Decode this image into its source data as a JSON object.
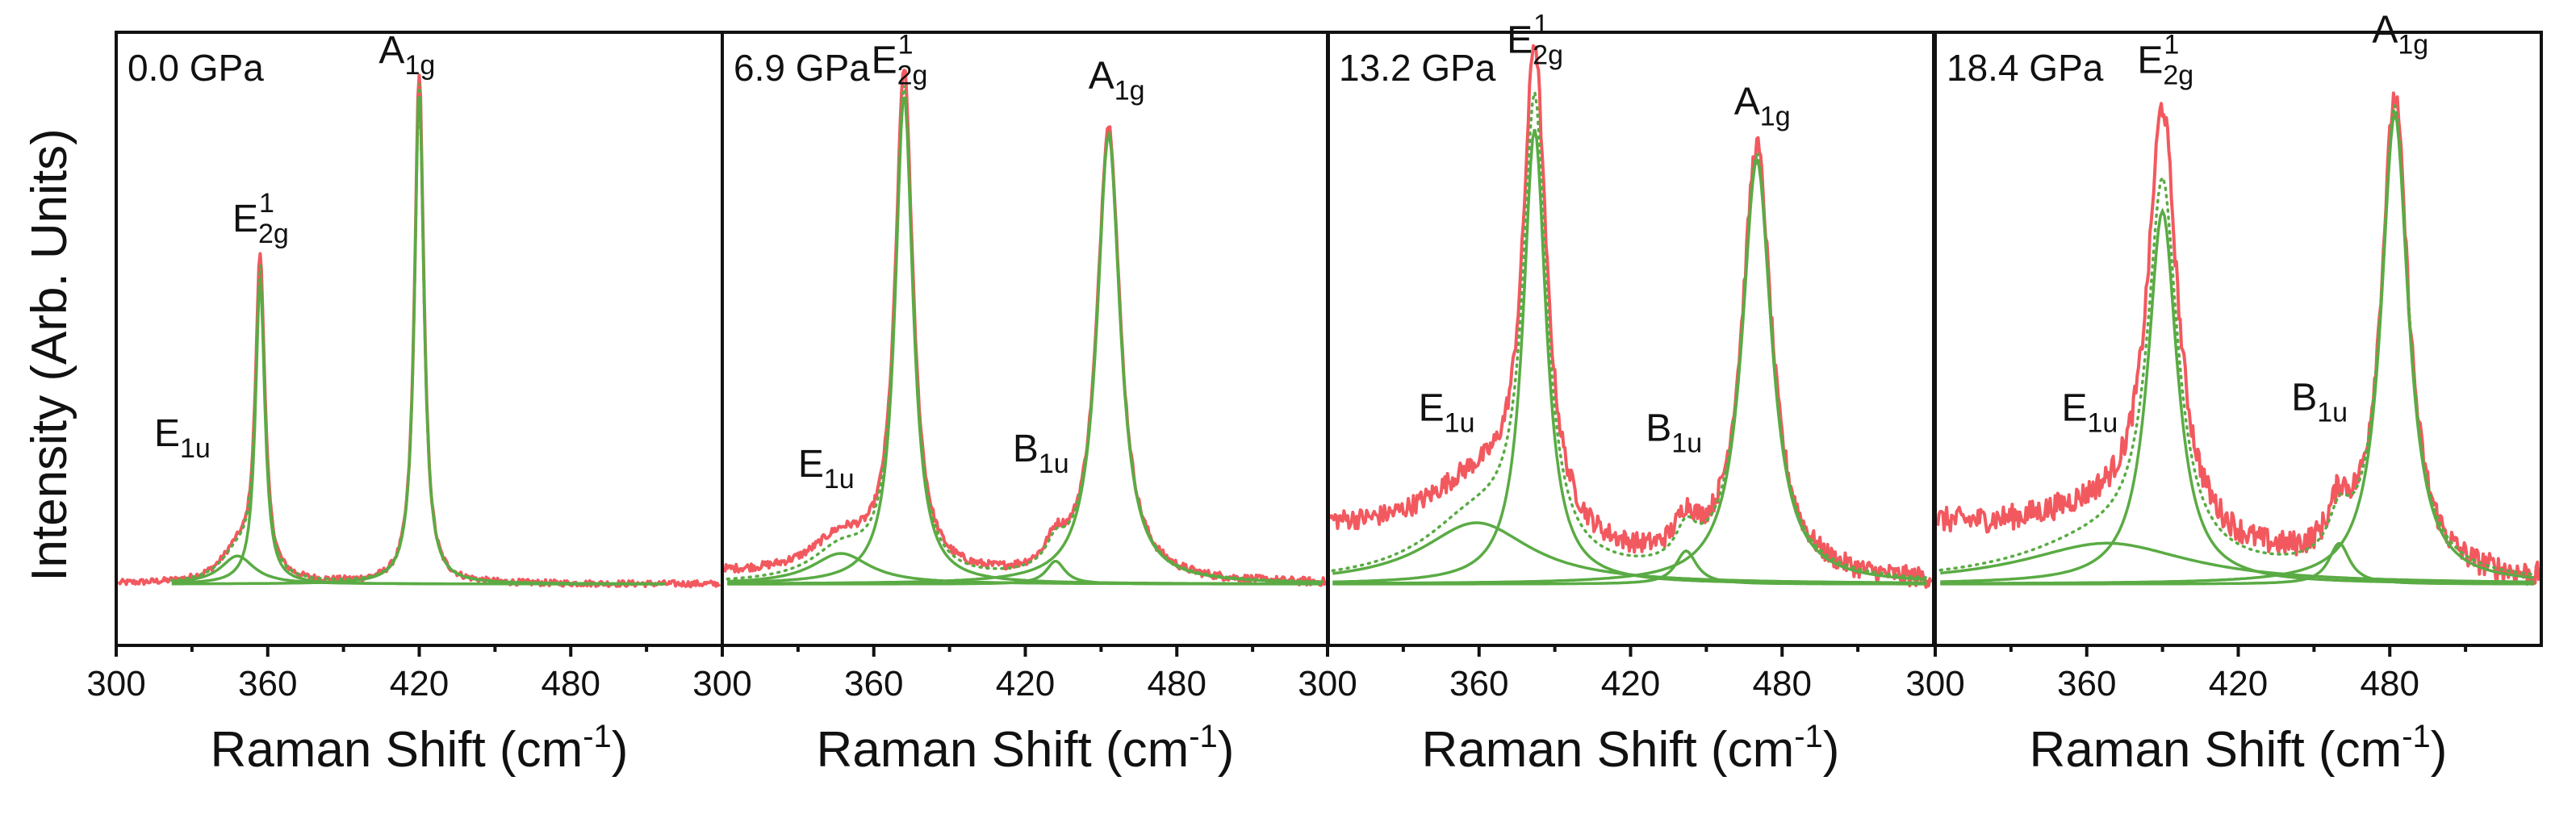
{
  "colors": {
    "experimental": "#f2595f",
    "fit": "#5aab44",
    "axis": "#111111"
  },
  "chart_data": [
    {
      "type": "line",
      "label": "0.0 GPa",
      "xlabel": "Raman Shift (cm-1)",
      "ylabel": "Intensity (Arb. Units)",
      "xlim": [
        300,
        540
      ],
      "ylim": [
        -0.12,
        1.08
      ],
      "xticks": [
        300,
        360,
        420,
        480
      ],
      "baseline_slope": 0,
      "noise": 0.006,
      "fit_range": [
        320,
        520
      ],
      "peaks": [
        {
          "name": "E1u",
          "center": 348,
          "height": 0.06,
          "width": 8,
          "fit_height": 0.055,
          "label": "E",
          "sub": "1u",
          "label_x": 315,
          "label_y": 0.27
        },
        {
          "name": "E2g1",
          "center": 357,
          "height": 0.62,
          "width": 2.2,
          "fit_height": 0.6,
          "label": "E",
          "sub": "2g",
          "sup": "1",
          "label_x": 346,
          "label_y": 0.69
        },
        {
          "name": "A1g",
          "center": 420,
          "height": 1.0,
          "width": 2.2,
          "fit_height": 0.98,
          "label": "A",
          "sub": "1g",
          "label_x": 404,
          "label_y": 1.02
        }
      ]
    },
    {
      "type": "line",
      "label": "6.9 GPa",
      "xlabel": "Raman Shift (cm-1)",
      "ylabel": "",
      "xlim": [
        300,
        540
      ],
      "ylim": [
        -0.12,
        1.08
      ],
      "xticks": [
        300,
        360,
        420,
        480
      ],
      "baseline_slope": 0.02,
      "noise": 0.008,
      "fit_range": [
        300,
        540
      ],
      "peaks": [
        {
          "name": "E1u",
          "center": 347,
          "height": 0.07,
          "width": 14,
          "fit_height": 0.06,
          "label": "E",
          "sub": "1u",
          "label_x": 330,
          "label_y": 0.21
        },
        {
          "name": "E2g1",
          "center": 372,
          "height": 0.98,
          "width": 4.2,
          "fit_height": 0.96,
          "label": "E",
          "sub": "2g",
          "sup": "1",
          "label_x": 359,
          "label_y": 1.0
        },
        {
          "name": "B1u",
          "center": 432,
          "height": 0.05,
          "width": 4.5,
          "fit_height": 0.045,
          "label": "B",
          "sub": "1u",
          "label_x": 415,
          "label_y": 0.24
        },
        {
          "name": "A1g",
          "center": 453,
          "height": 0.89,
          "width": 5.5,
          "fit_height": 0.88,
          "label": "A",
          "sub": "1g",
          "label_x": 445,
          "label_y": 0.97
        }
      ]
    },
    {
      "type": "line",
      "label": "13.2 GPa",
      "xlabel": "Raman Shift (cm-1)",
      "ylabel": "",
      "xlim": [
        300,
        540
      ],
      "ylim": [
        -0.12,
        1.08
      ],
      "xticks": [
        300,
        360,
        420,
        480
      ],
      "baseline_slope": 0.1,
      "noise": 0.02,
      "fit_range": [
        300,
        540
      ],
      "peaks": [
        {
          "name": "E1u",
          "center": 359,
          "height": 0.13,
          "width": 26,
          "fit_height": 0.12,
          "label": "E",
          "sub": "1u",
          "label_x": 336,
          "label_y": 0.32
        },
        {
          "name": "E2g1",
          "center": 382,
          "height": 0.94,
          "width": 5.5,
          "fit_height": 0.89,
          "label": "E",
          "sub": "2g",
          "sup": "1",
          "label_x": 371,
          "label_y": 1.04
        },
        {
          "name": "B1u",
          "center": 442,
          "height": 0.07,
          "width": 5,
          "fit_height": 0.065,
          "label": "B",
          "sub": "1u",
          "label_x": 426,
          "label_y": 0.28
        },
        {
          "name": "A1g",
          "center": 470,
          "height": 0.84,
          "width": 7,
          "fit_height": 0.83,
          "label": "A",
          "sub": "1g",
          "label_x": 461,
          "label_y": 0.92
        }
      ]
    },
    {
      "type": "line",
      "label": "18.4 GPa",
      "xlabel": "Raman Shift (cm-1)",
      "ylabel": "",
      "xlim": [
        300,
        540
      ],
      "ylim": [
        -0.12,
        1.08
      ],
      "xticks": [
        300,
        360,
        420,
        480
      ],
      "baseline_slope": 0.1,
      "noise": 0.025,
      "fit_range": [
        300,
        540
      ],
      "peaks": [
        {
          "name": "E1u",
          "center": 368,
          "height": 0.08,
          "width": 40,
          "fit_height": 0.08,
          "label": "E",
          "sub": "1u",
          "label_x": 350,
          "label_y": 0.32
        },
        {
          "name": "E2g1",
          "center": 390,
          "height": 0.83,
          "width": 7,
          "fit_height": 0.73,
          "label": "E",
          "sub": "2g",
          "sup": "1",
          "label_x": 380,
          "label_y": 1.0
        },
        {
          "name": "B1u",
          "center": 460,
          "height": 0.09,
          "width": 5,
          "fit_height": 0.08,
          "label": "B",
          "sub": "1u",
          "label_x": 441,
          "label_y": 0.34
        },
        {
          "name": "A1g",
          "center": 482,
          "height": 0.93,
          "width": 6.5,
          "fit_height": 0.92,
          "label": "A",
          "sub": "1g",
          "label_x": 473,
          "label_y": 1.06
        }
      ]
    }
  ]
}
